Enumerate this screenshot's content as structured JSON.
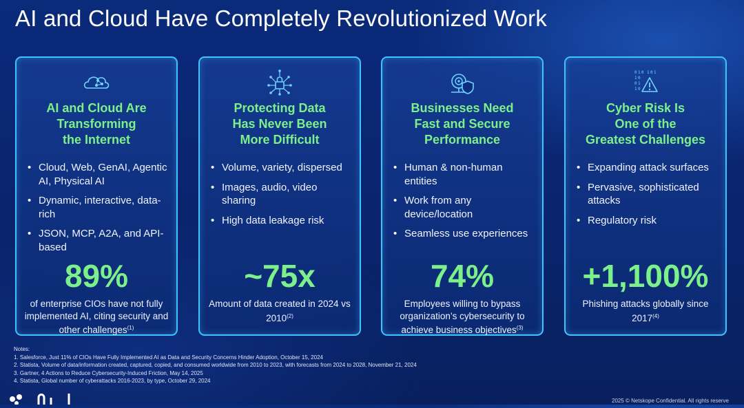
{
  "slide": {
    "title": "AI and Cloud Have Completely Revolutionized Work"
  },
  "cards": [
    {
      "icon": "cloud-network-icon",
      "heading": "AI and Cloud Are\nTransforming\nthe Internet",
      "bullets": [
        "Cloud, Web, GenAI, Agentic AI, Physical AI",
        "Dynamic, interactive, data-rich",
        "JSON, MCP, A2A, and API-based"
      ],
      "stat": "89%",
      "desc": "of enterprise CIOs have not fully implemented AI, citing security and other challenges",
      "ref": "(1)"
    },
    {
      "icon": "lock-network-icon",
      "heading": "Protecting Data\nHas Never Been\nMore Difficult",
      "bullets": [
        "Volume, variety, dispersed",
        "Images, audio, video sharing",
        "High data leakage risk"
      ],
      "stat": "~75x",
      "desc": "Amount of data created in 2024 vs 2010",
      "ref": "(2)"
    },
    {
      "icon": "shield-gauge-icon",
      "heading": "Businesses Need\nFast and Secure\nPerformance",
      "bullets": [
        "Human & non-human entities",
        "Work from any device/location",
        "Seamless use experiences"
      ],
      "stat": "74%",
      "desc": "Employees willing to bypass organization’s cybersecurity to achieve business objectives",
      "ref": "(3)"
    },
    {
      "icon": "binary-warning-icon",
      "heading": "Cyber Risk Is\nOne of the\nGreatest Challenges",
      "bullets": [
        "Expanding attack surfaces",
        "Pervasive, sophisticated attacks",
        "Regulatory risk"
      ],
      "stat": "+1,100%",
      "desc": "Phishing attacks globally since 2017",
      "ref": "(4)"
    }
  ],
  "notes": {
    "label": "Notes:",
    "items": [
      "1. Salesforce, Just 11% of CIOs Have Fully Implemented AI as Data and Security Concerns Hinder Adoption, October 15, 2024",
      "2. Statista, Volume of data/information created, captured, copied, and consumed worldwide from 2010 to 2023, with forecasts from 2024 to 2028, November 21, 2024",
      "3. Gartner, 4 Actions to Reduce Cybersecurity-Induced Friction, May 14, 2025",
      "4. Statista, Global number of cyberattacks 2016-2023, by type, October 29, 2024"
    ]
  },
  "footer": {
    "text": "2025 © Netskope Confidential. All rights reserve"
  },
  "colors": {
    "accent_green": "#7cf08a",
    "card_border": "#3fc4ff",
    "background": "#0a2672"
  }
}
